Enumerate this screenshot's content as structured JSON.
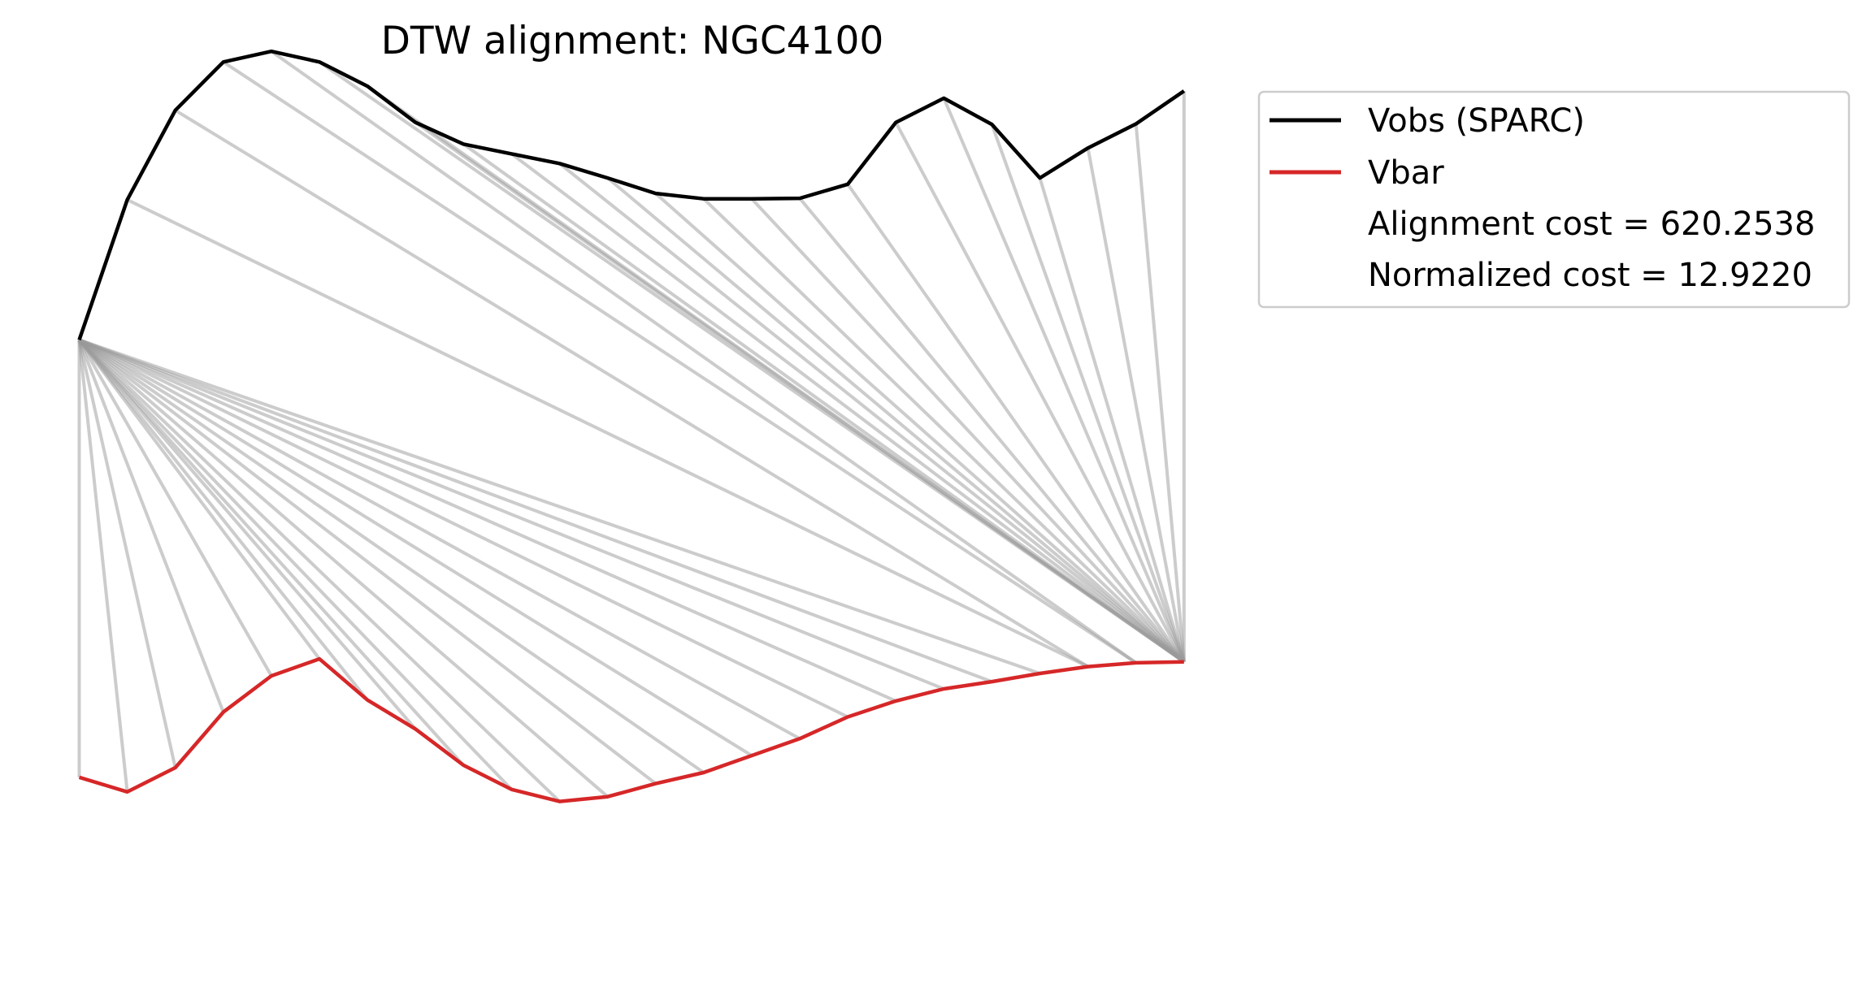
{
  "chart_data": {
    "type": "line",
    "title": "DTW alignment: NGC4100",
    "xlabel": "",
    "ylabel": "",
    "axes_visible": false,
    "grid": false,
    "legend_position": "outside-upper-right",
    "colors": {
      "vobs": "#000000",
      "vbar": "#d62728",
      "alignment_lines": "#999999"
    },
    "series": [
      {
        "name": "Vobs (SPARC)",
        "color": "#000000",
        "x": [
          0,
          1,
          2,
          3,
          4,
          5,
          6,
          7,
          8,
          9,
          10,
          11,
          12,
          13,
          14,
          15,
          16,
          17,
          18,
          19,
          20,
          21,
          22,
          23
        ],
        "y": [
          6.85,
          9.75,
          11.6,
          12.6,
          12.82,
          12.6,
          12.1,
          11.35,
          10.9,
          10.7,
          10.5,
          10.2,
          9.88,
          9.77,
          9.77,
          9.78,
          10.07,
          11.35,
          11.85,
          11.31,
          10.2,
          10.82,
          11.32,
          12.0
        ]
      },
      {
        "name": "Vbar",
        "color": "#d62728",
        "x": [
          0,
          1,
          2,
          3,
          4,
          5,
          6,
          7,
          8,
          9,
          10,
          11,
          12,
          13,
          14,
          15,
          16,
          17,
          18,
          19,
          20,
          21,
          22,
          23
        ],
        "y": [
          -2.2,
          -2.5,
          -2.0,
          -0.85,
          -0.1,
          0.25,
          -0.6,
          -1.2,
          -1.95,
          -2.45,
          -2.7,
          -2.6,
          -2.33,
          -2.1,
          -1.75,
          -1.4,
          -0.95,
          -0.62,
          -0.37,
          -0.22,
          -0.05,
          0.09,
          0.17,
          0.19
        ]
      }
    ],
    "alignment_path": [
      [
        0,
        0
      ],
      [
        0,
        1
      ],
      [
        0,
        2
      ],
      [
        0,
        3
      ],
      [
        0,
        4
      ],
      [
        0,
        5
      ],
      [
        0,
        6
      ],
      [
        0,
        7
      ],
      [
        0,
        8
      ],
      [
        0,
        9
      ],
      [
        0,
        10
      ],
      [
        0,
        11
      ],
      [
        0,
        12
      ],
      [
        0,
        13
      ],
      [
        0,
        14
      ],
      [
        0,
        15
      ],
      [
        0,
        16
      ],
      [
        0,
        17
      ],
      [
        0,
        18
      ],
      [
        0,
        19
      ],
      [
        0,
        20
      ],
      [
        1,
        21
      ],
      [
        2,
        21
      ],
      [
        3,
        22
      ],
      [
        4,
        22
      ],
      [
        5,
        23
      ],
      [
        6,
        23
      ],
      [
        7,
        23
      ],
      [
        8,
        23
      ],
      [
        9,
        23
      ],
      [
        10,
        23
      ],
      [
        11,
        23
      ],
      [
        12,
        23
      ],
      [
        13,
        23
      ],
      [
        14,
        23
      ],
      [
        15,
        23
      ],
      [
        16,
        23
      ],
      [
        17,
        23
      ],
      [
        18,
        23
      ],
      [
        19,
        23
      ],
      [
        20,
        23
      ],
      [
        21,
        23
      ],
      [
        22,
        23
      ],
      [
        23,
        23
      ]
    ],
    "alignment_cost": "Alignment cost = 620.2538",
    "normalized_cost": "Normalized cost = 12.9220"
  },
  "legend": {
    "entries": [
      {
        "label": "Vobs (SPARC)",
        "kind": "line",
        "color": "#000000"
      },
      {
        "label": "Vbar",
        "kind": "line",
        "color": "#d62728"
      },
      {
        "label": "Alignment cost = 620.2538",
        "kind": "text"
      },
      {
        "label": "Normalized cost = 12.9220",
        "kind": "text"
      }
    ]
  }
}
